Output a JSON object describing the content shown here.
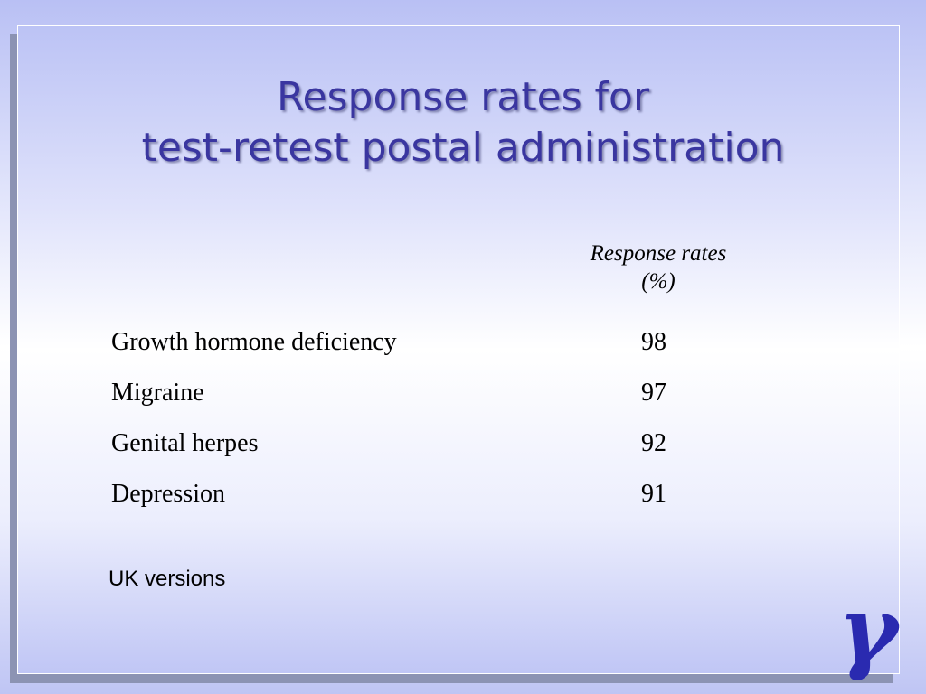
{
  "slide": {
    "title_line1": "Response rates for",
    "title_line2": "test-retest postal administration",
    "column_header_line1": "Response rates",
    "column_header_line2": "(%)",
    "rows": [
      {
        "label": "Growth hormone deficiency",
        "value": "98"
      },
      {
        "label": "Migraine",
        "value": "97"
      },
      {
        "label": "Genital herpes",
        "value": "92"
      },
      {
        "label": "Depression",
        "value": "91"
      }
    ],
    "footnote": "UK versions",
    "logo": {
      "icon": "gamma-logo-icon",
      "glyph": "γ",
      "color": "#2a2ab0"
    }
  },
  "colors": {
    "title": "#3a36a0",
    "background_top": "#b9c0f4",
    "background_mid": "#ffffff",
    "frame_shadow": "#8c93b3"
  }
}
